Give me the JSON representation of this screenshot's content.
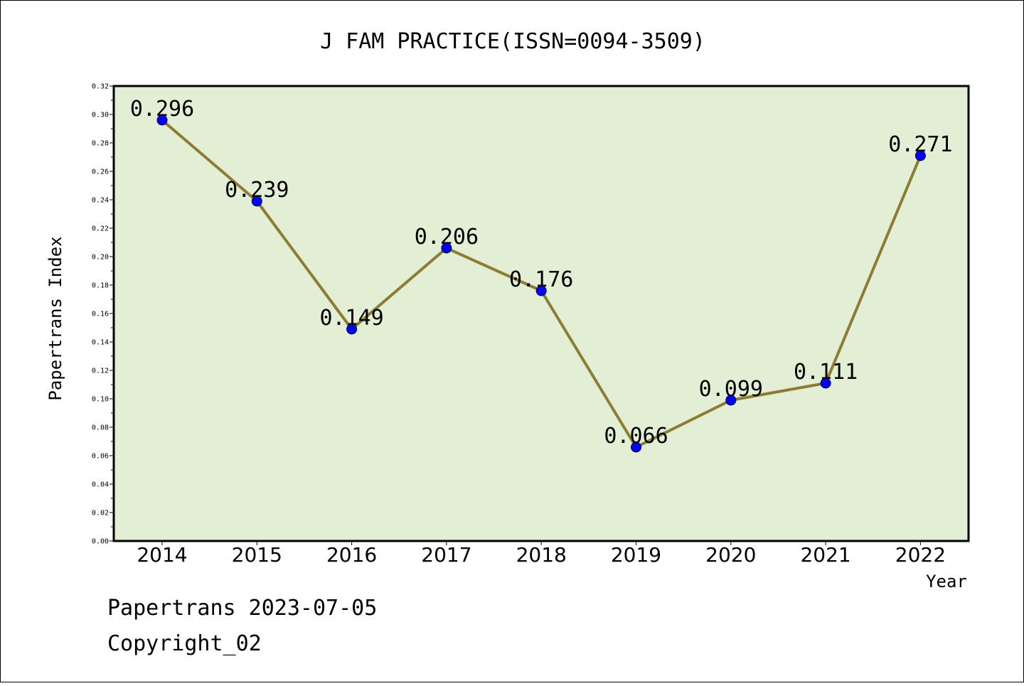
{
  "chart_data": {
    "type": "line",
    "title": "J FAM PRACTICE(ISSN=0094-3509)",
    "xlabel": "Year",
    "ylabel": "Papertrans Index",
    "x": [
      "2014",
      "2015",
      "2016",
      "2017",
      "2018",
      "2019",
      "2020",
      "2021",
      "2022"
    ],
    "y": [
      0.296,
      0.239,
      0.149,
      0.206,
      0.176,
      0.066,
      0.099,
      0.111,
      0.271
    ],
    "data_labels": [
      "0.296",
      "0.239",
      "0.149",
      "0.206",
      "0.176",
      "0.066",
      "0.099",
      "0.111",
      "0.271"
    ],
    "ylim": [
      0,
      0.32
    ],
    "yticks": [
      "0.00",
      "0.02",
      "0.04",
      "0.06",
      "0.08",
      "0.10",
      "0.12",
      "0.14",
      "0.16",
      "0.18",
      "0.20",
      "0.22",
      "0.24",
      "0.26",
      "0.28",
      "0.30",
      "0.32"
    ],
    "grid": false,
    "colors": {
      "plot_background": "#e2efd4",
      "line": "#8c7c34",
      "marker": "#0000ff"
    }
  },
  "footer": {
    "line1": "Papertrans 2023-07-05",
    "line2": "Copyright_02"
  }
}
